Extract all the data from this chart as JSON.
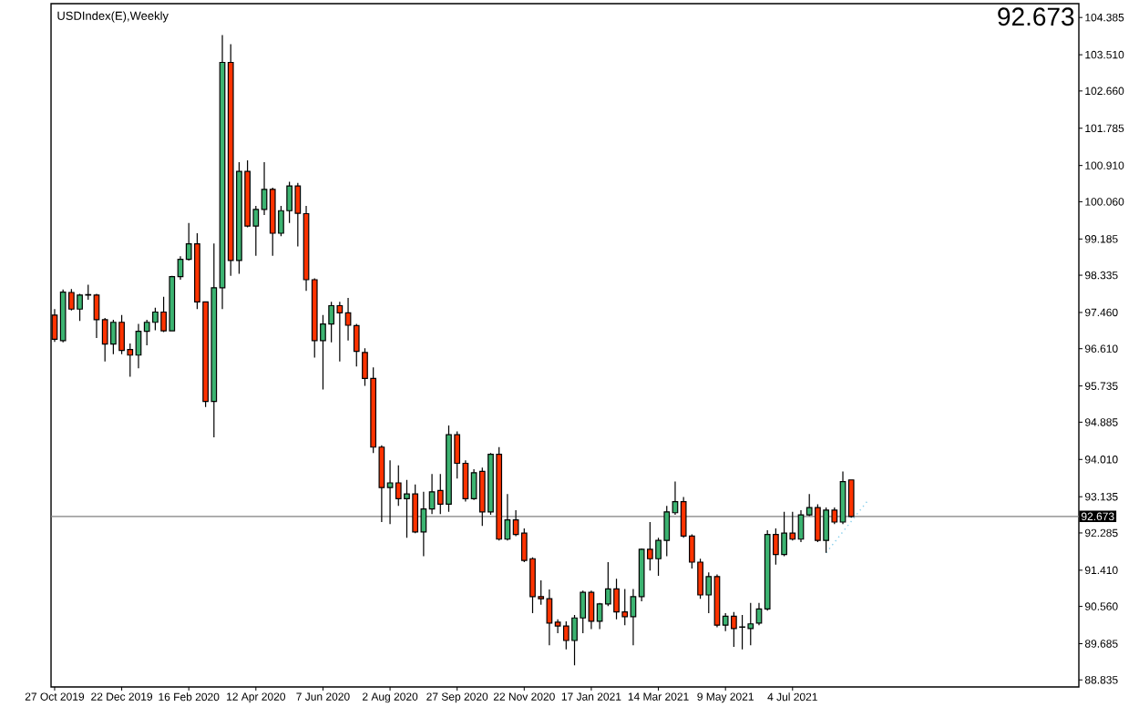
{
  "chart_data": {
    "type": "candlestick",
    "title": "USDIndex(E),Weekly",
    "x": [
      "2019-10-27",
      "2019-11-03",
      "2019-11-10",
      "2019-11-17",
      "2019-11-24",
      "2019-12-01",
      "2019-12-08",
      "2019-12-15",
      "2019-12-22",
      "2019-12-29",
      "2020-01-05",
      "2020-01-12",
      "2020-01-19",
      "2020-01-26",
      "2020-02-02",
      "2020-02-09",
      "2020-02-16",
      "2020-02-23",
      "2020-03-01",
      "2020-03-08",
      "2020-03-15",
      "2020-03-22",
      "2020-03-29",
      "2020-04-05",
      "2020-04-12",
      "2020-04-19",
      "2020-04-26",
      "2020-05-03",
      "2020-05-10",
      "2020-05-17",
      "2020-05-24",
      "2020-05-31",
      "2020-06-07",
      "2020-06-14",
      "2020-06-21",
      "2020-06-28",
      "2020-07-05",
      "2020-07-12",
      "2020-07-19",
      "2020-07-26",
      "2020-08-02",
      "2020-08-09",
      "2020-08-16",
      "2020-08-23",
      "2020-08-30",
      "2020-09-06",
      "2020-09-13",
      "2020-09-20",
      "2020-09-27",
      "2020-10-04",
      "2020-10-11",
      "2020-10-18",
      "2020-10-25",
      "2020-11-01",
      "2020-11-08",
      "2020-11-15",
      "2020-11-22",
      "2020-11-29",
      "2020-12-06",
      "2020-12-13",
      "2020-12-20",
      "2020-12-27",
      "2021-01-03",
      "2021-01-10",
      "2021-01-17",
      "2021-01-24",
      "2021-01-31",
      "2021-02-07",
      "2021-02-14",
      "2021-02-21",
      "2021-02-28",
      "2021-03-07",
      "2021-03-14",
      "2021-03-21",
      "2021-03-28",
      "2021-04-04",
      "2021-04-11",
      "2021-04-18",
      "2021-04-25",
      "2021-05-02",
      "2021-05-09",
      "2021-05-16",
      "2021-05-23",
      "2021-05-30",
      "2021-06-06",
      "2021-06-13",
      "2021-06-20",
      "2021-06-27",
      "2021-07-04",
      "2021-07-11",
      "2021-07-18",
      "2021-07-25",
      "2021-08-01",
      "2021-08-08",
      "2021-08-15",
      "2021-08-22"
    ],
    "ohlc": [
      [
        97.4,
        97.54,
        96.77,
        96.83
      ],
      [
        96.8,
        98.0,
        96.76,
        97.94
      ],
      [
        97.93,
        98.01,
        97.51,
        97.54
      ],
      [
        97.54,
        97.9,
        97.26,
        97.87
      ],
      [
        97.87,
        98.11,
        97.76,
        97.88
      ],
      [
        97.87,
        97.9,
        96.86,
        97.29
      ],
      [
        97.29,
        97.33,
        96.31,
        96.72
      ],
      [
        96.72,
        97.29,
        96.48,
        97.23
      ],
      [
        97.23,
        97.4,
        96.48,
        96.57
      ],
      [
        96.59,
        96.73,
        95.95,
        96.46
      ],
      [
        96.46,
        97.19,
        96.15,
        97.02
      ],
      [
        97.02,
        97.29,
        96.69,
        97.23
      ],
      [
        97.23,
        97.57,
        97.04,
        97.47
      ],
      [
        97.47,
        97.83,
        97.0,
        97.03
      ],
      [
        97.03,
        98.32,
        97.02,
        98.3
      ],
      [
        98.3,
        98.78,
        98.23,
        98.71
      ],
      [
        98.71,
        99.56,
        98.68,
        99.07
      ],
      [
        99.07,
        99.32,
        97.54,
        97.71
      ],
      [
        97.71,
        97.72,
        95.24,
        95.37
      ],
      [
        95.37,
        99.08,
        94.53,
        98.04
      ],
      [
        98.04,
        103.97,
        97.54,
        103.33
      ],
      [
        103.33,
        103.76,
        98.32,
        98.68
      ],
      [
        98.68,
        100.99,
        98.37,
        100.77
      ],
      [
        100.77,
        101.03,
        99.46,
        99.49
      ],
      [
        99.49,
        99.96,
        98.79,
        99.88
      ],
      [
        99.88,
        100.99,
        99.75,
        100.35
      ],
      [
        100.35,
        100.39,
        98.79,
        99.32
      ],
      [
        99.32,
        99.96,
        99.25,
        99.85
      ],
      [
        99.85,
        100.53,
        99.56,
        100.43
      ],
      [
        100.43,
        100.5,
        99.01,
        99.79
      ],
      [
        99.78,
        99.96,
        97.97,
        98.23
      ],
      [
        98.23,
        98.26,
        96.4,
        96.8
      ],
      [
        96.8,
        97.4,
        95.65,
        97.19
      ],
      [
        97.19,
        97.71,
        96.76,
        97.62
      ],
      [
        97.62,
        97.71,
        96.31,
        97.45
      ],
      [
        97.45,
        97.8,
        96.8,
        97.16
      ],
      [
        97.15,
        97.19,
        96.19,
        96.55
      ],
      [
        96.52,
        96.62,
        95.74,
        95.91
      ],
      [
        95.91,
        96.17,
        94.16,
        94.3
      ],
      [
        94.3,
        94.34,
        92.54,
        93.35
      ],
      [
        93.35,
        93.99,
        92.49,
        93.46
      ],
      [
        93.46,
        93.87,
        92.92,
        93.09
      ],
      [
        93.09,
        93.53,
        92.17,
        93.2
      ],
      [
        93.2,
        93.42,
        92.28,
        92.31
      ],
      [
        92.31,
        93.25,
        91.74,
        92.85
      ],
      [
        92.85,
        93.67,
        92.73,
        93.25
      ],
      [
        93.28,
        93.67,
        92.73,
        92.96
      ],
      [
        92.96,
        94.81,
        92.78,
        94.59
      ],
      [
        94.59,
        94.67,
        93.56,
        93.92
      ],
      [
        93.92,
        93.99,
        93.02,
        93.09
      ],
      [
        93.09,
        93.78,
        93.06,
        93.7
      ],
      [
        93.73,
        93.82,
        92.45,
        92.78
      ],
      [
        92.78,
        94.16,
        92.71,
        94.13
      ],
      [
        94.13,
        94.3,
        92.11,
        92.14
      ],
      [
        92.14,
        93.2,
        92.11,
        92.59
      ],
      [
        92.59,
        92.82,
        92.21,
        92.25
      ],
      [
        92.28,
        92.39,
        91.6,
        91.64
      ],
      [
        91.68,
        91.71,
        90.4,
        90.79
      ],
      [
        90.79,
        91.17,
        90.6,
        90.74
      ],
      [
        90.74,
        90.96,
        89.65,
        90.17
      ],
      [
        90.19,
        90.26,
        89.93,
        90.1
      ],
      [
        90.1,
        90.21,
        89.55,
        89.76
      ],
      [
        89.76,
        90.36,
        89.18,
        90.29
      ],
      [
        90.29,
        90.93,
        89.93,
        90.89
      ],
      [
        90.89,
        90.93,
        90.03,
        90.21
      ],
      [
        90.21,
        90.64,
        90.03,
        90.62
      ],
      [
        90.62,
        91.6,
        90.57,
        90.97
      ],
      [
        90.97,
        91.21,
        90.26,
        90.43
      ],
      [
        90.43,
        90.97,
        90.12,
        90.32
      ],
      [
        90.32,
        90.97,
        89.65,
        90.79
      ],
      [
        90.79,
        91.92,
        90.68,
        91.9
      ],
      [
        91.9,
        92.54,
        91.4,
        91.68
      ],
      [
        91.68,
        92.17,
        91.28,
        92.11
      ],
      [
        92.11,
        92.92,
        91.74,
        92.78
      ],
      [
        92.76,
        93.49,
        92.71,
        93.02
      ],
      [
        93.02,
        93.13,
        92.17,
        92.21
      ],
      [
        92.21,
        92.25,
        91.45,
        91.6
      ],
      [
        91.6,
        91.68,
        90.74,
        90.83
      ],
      [
        90.83,
        91.36,
        90.4,
        91.26
      ],
      [
        91.26,
        91.31,
        90.07,
        90.12
      ],
      [
        90.12,
        90.4,
        89.98,
        90.33
      ],
      [
        90.33,
        90.43,
        89.61,
        90.04
      ],
      [
        90.07,
        90.36,
        89.55,
        90.08
      ],
      [
        90.04,
        90.64,
        89.65,
        90.15
      ],
      [
        90.17,
        90.64,
        90.12,
        90.5
      ],
      [
        90.5,
        92.35,
        90.46,
        92.25
      ],
      [
        92.25,
        92.39,
        91.54,
        91.78
      ],
      [
        91.78,
        92.78,
        91.74,
        92.28
      ],
      [
        92.28,
        92.78,
        92.11,
        92.14
      ],
      [
        92.14,
        92.82,
        92.07,
        92.71
      ],
      [
        92.71,
        93.2,
        92.68,
        92.88
      ],
      [
        92.88,
        92.96,
        92.07,
        92.11
      ],
      [
        92.11,
        92.88,
        91.82,
        92.82
      ],
      [
        92.82,
        92.88,
        92.49,
        92.54
      ],
      [
        92.54,
        93.73,
        92.49,
        93.49
      ],
      [
        93.53,
        93.54,
        92.64,
        92.673
      ]
    ],
    "colors": [
      "#ff3300",
      "#3cb371",
      "#ff3300",
      "#3cb371",
      "#3cb371",
      "#ff3300",
      "#ff3300",
      "#3cb371",
      "#ff3300",
      "#ff3300",
      "#3cb371",
      "#3cb371",
      "#3cb371",
      "#ff3300",
      "#3cb371",
      "#3cb371",
      "#3cb371",
      "#ff3300",
      "#ff3300",
      "#3cb371",
      "#3cb371",
      "#ff3300",
      "#3cb371",
      "#ff3300",
      "#3cb371",
      "#3cb371",
      "#ff3300",
      "#3cb371",
      "#3cb371",
      "#ff3300",
      "#ff3300",
      "#ff3300",
      "#3cb371",
      "#3cb371",
      "#ff3300",
      "#ff3300",
      "#ff3300",
      "#ff3300",
      "#ff3300",
      "#ff3300",
      "#3cb371",
      "#ff3300",
      "#3cb371",
      "#ff3300",
      "#3cb371",
      "#3cb371",
      "#ff3300",
      "#3cb371",
      "#ff3300",
      "#ff3300",
      "#3cb371",
      "#ff3300",
      "#3cb371",
      "#ff3300",
      "#3cb371",
      "#ff3300",
      "#ff3300",
      "#ff3300",
      "#ff3300",
      "#ff3300",
      "#ff3300",
      "#ff3300",
      "#3cb371",
      "#3cb371",
      "#ff3300",
      "#3cb371",
      "#3cb371",
      "#ff3300",
      "#ff3300",
      "#3cb371",
      "#3cb371",
      "#ff3300",
      "#3cb371",
      "#3cb371",
      "#3cb371",
      "#ff3300",
      "#ff3300",
      "#ff3300",
      "#3cb371",
      "#ff3300",
      "#3cb371",
      "#ff3300",
      "#3cb371",
      "#3cb371",
      "#3cb371",
      "#3cb371",
      "#ff3300",
      "#3cb371",
      "#ff3300",
      "#3cb371",
      "#3cb371",
      "#ff3300",
      "#3cb371",
      "#ff3300",
      "#3cb371",
      "#ff3300"
    ],
    "series": [
      {
        "type": "line",
        "x": [
          "2021-08-01",
          "2021-09-05"
        ],
        "values": [
          91.82,
          93.05
        ],
        "color": "#87ceeb",
        "line_style": "dotted"
      }
    ],
    "xlim": [
      "2019-10-24",
      "2022-02-28"
    ],
    "xticks": [
      {
        "value": "2019-10-27",
        "label": "27 Oct 2019"
      },
      {
        "value": "2019-12-22",
        "label": "22 Dec 2019"
      },
      {
        "value": "2020-02-16",
        "label": "16 Feb 2020"
      },
      {
        "value": "2020-04-12",
        "label": "12 Apr 2020"
      },
      {
        "value": "2020-06-07",
        "label": "7 Jun 2020"
      },
      {
        "value": "2020-08-02",
        "label": "2 Aug 2020"
      },
      {
        "value": "2020-09-27",
        "label": "27 Sep 2020"
      },
      {
        "value": "2020-11-22",
        "label": "22 Nov 2020"
      },
      {
        "value": "2021-01-17",
        "label": "17 Jan 2021"
      },
      {
        "value": "2021-03-14",
        "label": "14 Mar 2021"
      },
      {
        "value": "2021-05-09",
        "label": "9 May 2021"
      },
      {
        "value": "2021-07-04",
        "label": "4 Jul 2021"
      }
    ],
    "ylim": [
      88.67,
      104.71
    ],
    "yticks": [
      104.385,
      {
        "value": 103.51,
        "label": "103.510"
      },
      {
        "value": 102.66,
        "label": "102.660"
      },
      101.785,
      {
        "value": 100.91,
        "label": "100.910"
      },
      {
        "value": 100.06,
        "label": "100.060"
      },
      99.185,
      98.335,
      {
        "value": 97.46,
        "label": "97.460"
      },
      {
        "value": 96.61,
        "label": "96.610"
      },
      95.735,
      94.885,
      {
        "value": 94.01,
        "label": "94.010"
      },
      93.135,
      92.285,
      {
        "value": 91.41,
        "label": "91.410"
      },
      {
        "value": 90.56,
        "label": "90.560"
      },
      89.685,
      88.835
    ],
    "ref_lines": [
      {
        "axis": "y",
        "value": 92.673,
        "label": "92.673",
        "color": "#808080"
      }
    ],
    "annotations": [
      "92.673"
    ]
  }
}
